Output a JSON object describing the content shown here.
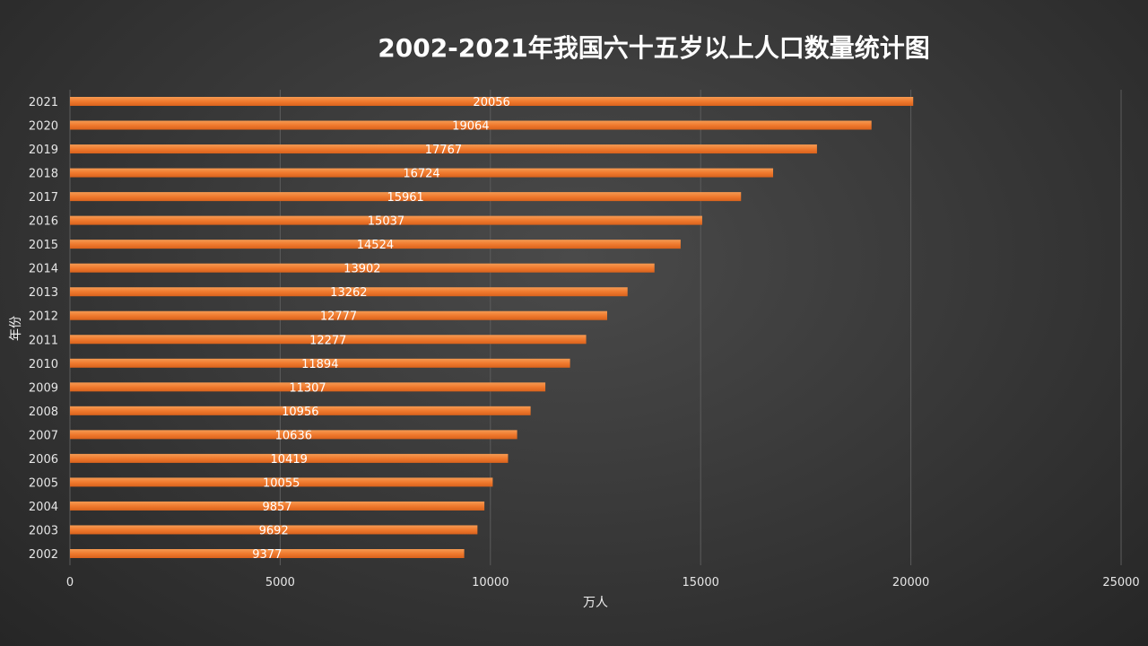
{
  "chart_data": {
    "type": "bar",
    "orientation": "horizontal",
    "title": "2002-2021年我国六十五岁以上人口数量统计图",
    "xlabel": "万人",
    "ylabel": "年份",
    "categories": [
      "2002",
      "2003",
      "2004",
      "2005",
      "2006",
      "2007",
      "2008",
      "2009",
      "2010",
      "2011",
      "2012",
      "2013",
      "2014",
      "2015",
      "2016",
      "2017",
      "2018",
      "2019",
      "2020",
      "2021"
    ],
    "values": [
      9377,
      9692,
      9857,
      10055,
      10419,
      10636,
      10956,
      11307,
      11894,
      12277,
      12777,
      13262,
      13902,
      14524,
      15037,
      15961,
      16724,
      17767,
      19064,
      20056
    ],
    "xlim": [
      0,
      25000
    ],
    "xticks": [
      0,
      5000,
      10000,
      15000,
      20000,
      25000
    ],
    "grid": true,
    "legend": "none",
    "colors": {
      "bar": "#f07a2e",
      "bar_light": "#f59a52",
      "bar_dark": "#d9621c",
      "grid": "#5c5c5c",
      "text": "#e6e6e6"
    }
  }
}
